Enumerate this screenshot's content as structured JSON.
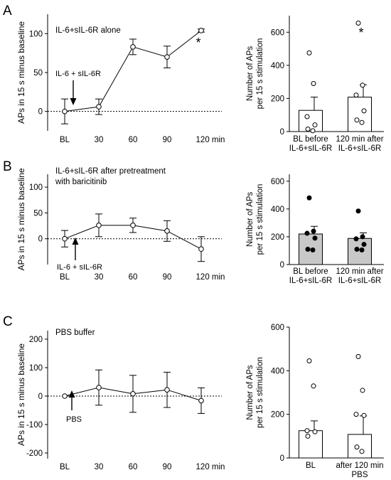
{
  "figure": {
    "panels": [
      {
        "letter": "A",
        "left_title_lines": [
          "IL-6+sIL-6R alone"
        ],
        "arrow_label": "IL-6 + sIL-6R",
        "star": "*"
      },
      {
        "letter": "B",
        "left_title_lines": [
          "IL-6+sIL-6R after pretreatment",
          "with baricitinib"
        ],
        "arrow_label": "IL-6 + sIL-6R",
        "star": ""
      },
      {
        "letter": "C",
        "left_title_lines": [
          "PBS buffer"
        ],
        "arrow_label": "PBS",
        "star": ""
      }
    ],
    "bar_ylabel_lines": [
      "Number of APs",
      "per 15 s stimulation"
    ]
  },
  "chart_data": [
    {
      "id": "A-line",
      "type": "line",
      "title": "IL-6+sIL-6R alone",
      "ylabel": "APs in 15 s minus baseline",
      "xlabel": "",
      "x_ticks": [
        "BL",
        "30",
        "60",
        "90",
        "120 min"
      ],
      "y_ticks": [
        "0",
        "50",
        "100"
      ],
      "ylim": [
        -25,
        125
      ],
      "series": [
        {
          "values": [
            0,
            6,
            83,
            70,
            104
          ],
          "errors": [
            16,
            10,
            10,
            14,
            2
          ]
        }
      ],
      "annotations": [
        {
          "text": "*",
          "at": "120 min"
        },
        {
          "text": "IL-6 + sIL-6R",
          "at": "BL-30 (arrow)"
        }
      ],
      "baseline": "dotted line at 0"
    },
    {
      "id": "A-bar",
      "type": "bar",
      "ylabel": "Number of APs per 15 s stimulation",
      "categories": [
        [
          "BL before",
          "IL-6+sIL-6R"
        ],
        [
          "120 min after",
          "IL-6+sIL-6R"
        ]
      ],
      "y_ticks": [
        "0",
        "200",
        "400",
        "600"
      ],
      "ylim": [
        0,
        700
      ],
      "values": [
        128,
        208
      ],
      "errors": [
        80,
        75
      ],
      "fill": "#ffffff",
      "points": [
        [
          475,
          290,
          90,
          40,
          15,
          5
        ],
        [
          655,
          280,
          220,
          125,
          70,
          55
        ]
      ],
      "point_style": "open",
      "annotations": [
        {
          "text": "*",
          "at": "120 min after"
        }
      ]
    },
    {
      "id": "B-line",
      "type": "line",
      "title": "IL-6+sIL-6R after pretreatment with baricitinib",
      "ylabel": "APs in 15 s minus baseline",
      "xlabel": "",
      "x_ticks": [
        "BL",
        "30",
        "60",
        "90",
        "120 min"
      ],
      "y_ticks": [
        "0",
        "50",
        "100"
      ],
      "ylim": [
        -50,
        125
      ],
      "series": [
        {
          "values": [
            0,
            26,
            26,
            15,
            -20
          ],
          "errors": [
            16,
            22,
            14,
            20,
            24
          ]
        }
      ],
      "annotations": [
        {
          "text": "IL-6 + sIL-6R",
          "at": "BL-30 (arrow)"
        }
      ],
      "baseline": "dotted line at 0"
    },
    {
      "id": "B-bar",
      "type": "bar",
      "ylabel": "Number of APs per 15 s stimulation",
      "categories": [
        [
          "BL before",
          "IL-6+sIL-6R"
        ],
        [
          "120 min after",
          "IL-6+sIL-6R"
        ]
      ],
      "y_ticks": [
        "0",
        "200",
        "400",
        "600"
      ],
      "ylim": [
        0,
        650
      ],
      "values": [
        220,
        188
      ],
      "errors": [
        55,
        40
      ],
      "fill": "#c8c8c8",
      "points": [
        [
          480,
          240,
          225,
          190,
          110,
          105
        ],
        [
          385,
          200,
          185,
          145,
          110,
          105
        ]
      ],
      "point_style": "filled"
    },
    {
      "id": "C-line",
      "type": "line",
      "title": "PBS buffer",
      "ylabel": "APs in 15 s minus baseline",
      "xlabel": "",
      "x_ticks": [
        "BL",
        "30",
        "60",
        "90",
        "120 min"
      ],
      "y_ticks": [
        "-200",
        "-100",
        "0",
        "100",
        "200"
      ],
      "ylim": [
        -220,
        230
      ],
      "series": [
        {
          "values": [
            0,
            30,
            8,
            22,
            -16
          ],
          "errors": [
            0,
            62,
            65,
            62,
            45
          ]
        }
      ],
      "annotations": [
        {
          "text": "PBS",
          "at": "BL-30 (arrow)"
        }
      ],
      "baseline": "dotted line at 0"
    },
    {
      "id": "C-bar",
      "type": "bar",
      "ylabel": "Number of APs per 15 s stimulation",
      "categories": [
        [
          "BL"
        ],
        [
          "after 120 min",
          "PBS"
        ]
      ],
      "y_ticks": [
        "0",
        "200",
        "400",
        "600"
      ],
      "ylim": [
        0,
        600
      ],
      "values": [
        125,
        108
      ],
      "errors": [
        45,
        85
      ],
      "fill": "#ffffff",
      "points": [
        [
          445,
          330,
          125,
          120,
          100
        ],
        [
          465,
          310,
          200,
          195,
          50,
          30
        ]
      ],
      "point_style": "open"
    }
  ]
}
